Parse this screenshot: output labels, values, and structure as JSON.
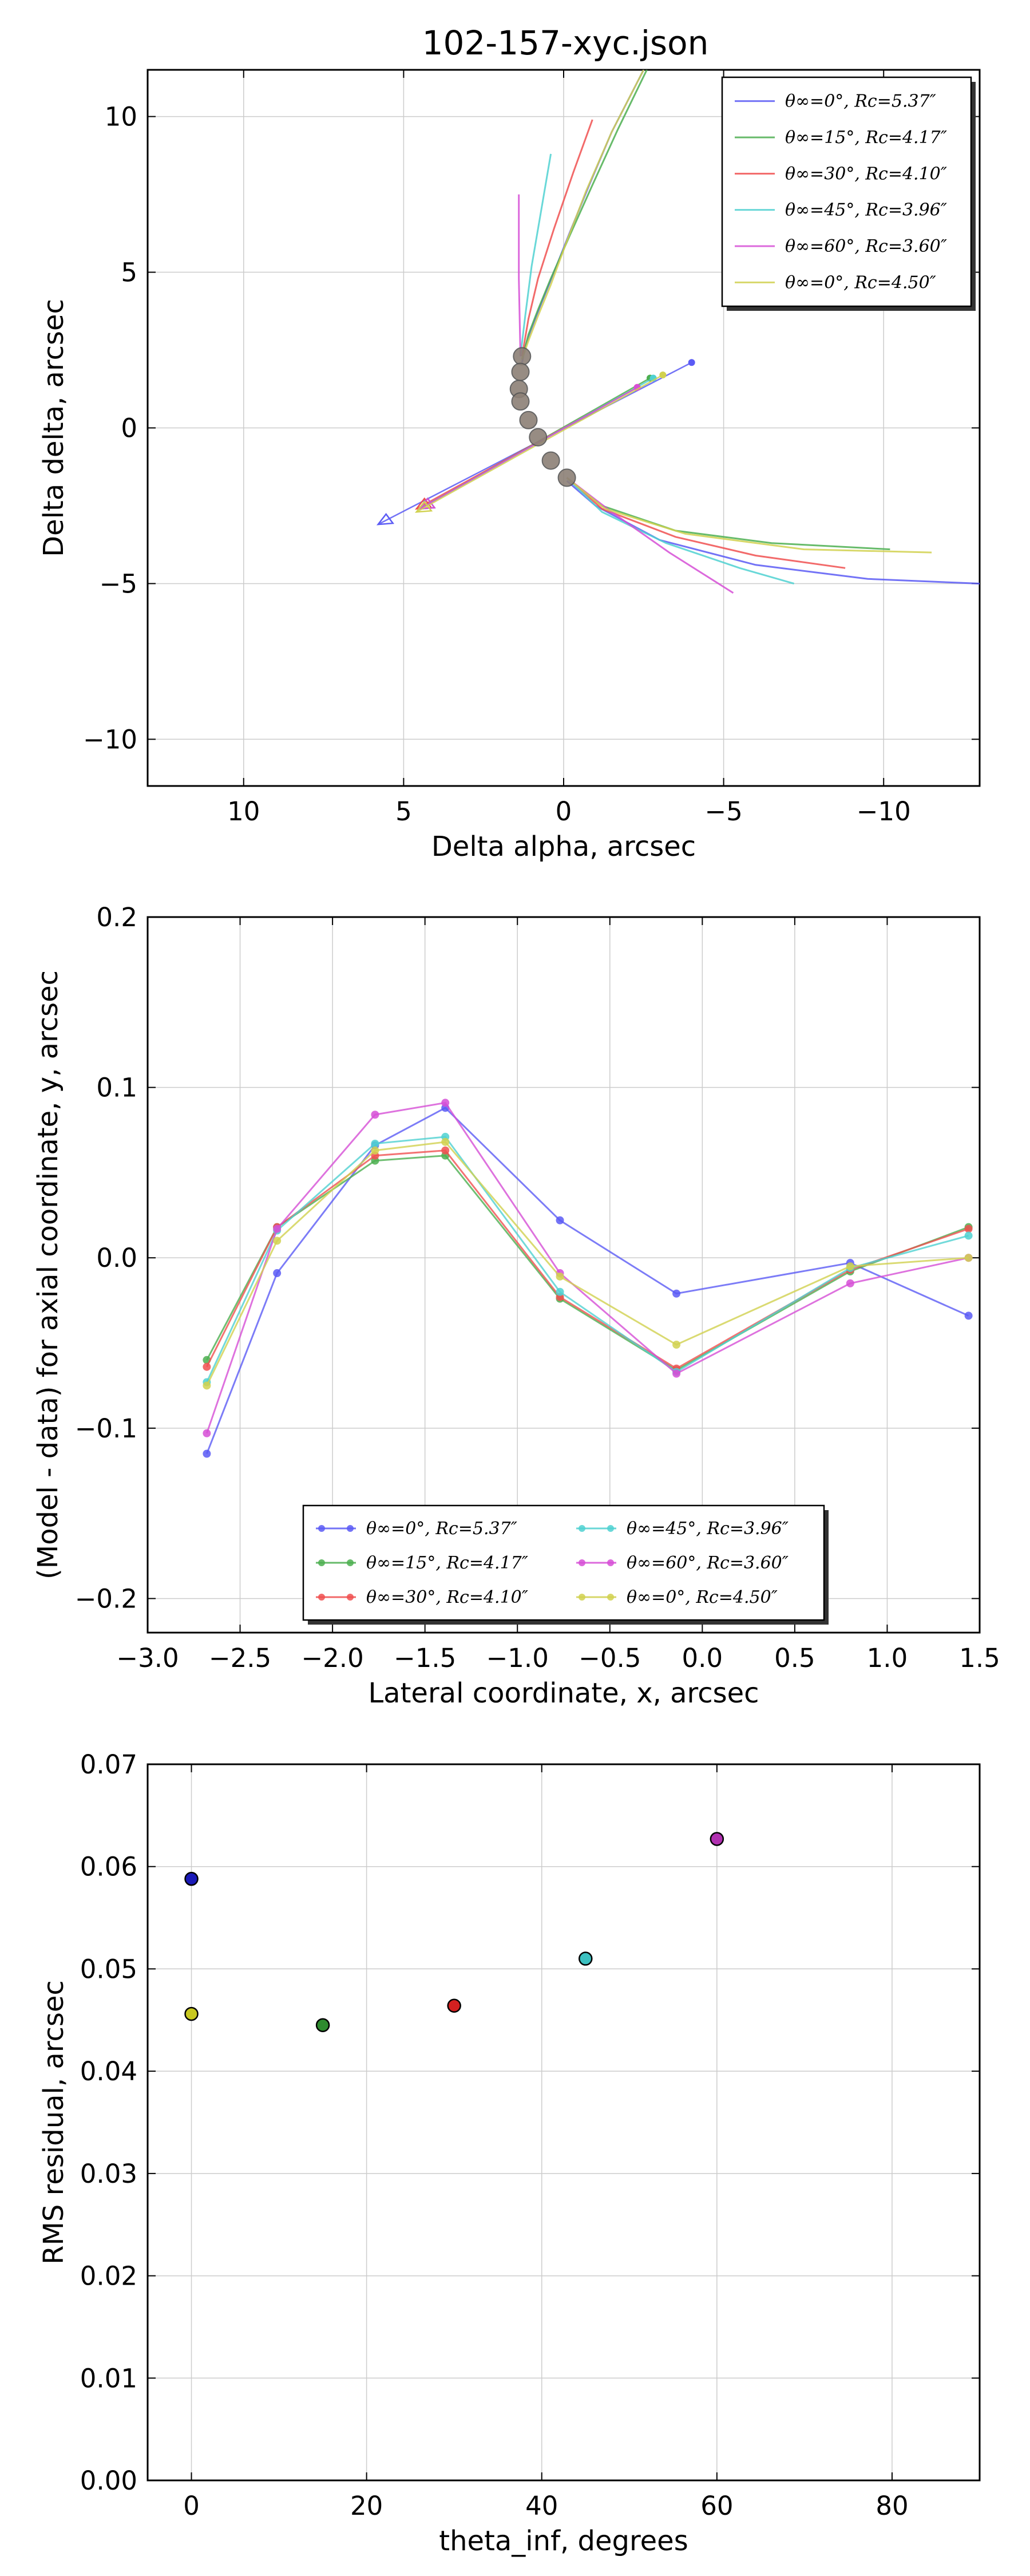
{
  "figure_title": "102-157-xyc.json",
  "chart_data": [
    {
      "type": "line",
      "title": "102-157-xyc.json",
      "xlabel": "Delta alpha, arcsec",
      "ylabel": "Delta delta, arcsec",
      "xlim": [
        13.0,
        -13.0
      ],
      "ylim": [
        -11.5,
        11.5
      ],
      "xticks": [
        10,
        5,
        0,
        -5,
        -10
      ],
      "xtick_labels": [
        "10",
        "5",
        "0",
        "−5",
        "−10"
      ],
      "yticks": [
        -10,
        -5,
        0,
        5,
        10
      ],
      "ytick_labels": [
        "−10",
        "−5",
        "0",
        "5",
        "10"
      ],
      "grid": true,
      "legend_position": "top-right",
      "data_points": {
        "name": "observed shell points",
        "color": "#8c8076",
        "x": [
          1.3,
          1.35,
          1.4,
          1.35,
          1.1,
          0.8,
          0.4,
          -0.1
        ],
        "y": [
          2.3,
          1.8,
          1.25,
          0.85,
          0.25,
          -0.3,
          -1.05,
          -1.6
        ]
      },
      "series": [
        {
          "name": "θ∞=0°, Rc=5.37″",
          "color": "#5b5bf5",
          "x": [
            -2.5,
            -1.5,
            -0.8,
            -0.2,
            0.3,
            0.7,
            1.0,
            1.2,
            1.3
          ],
          "y": [
            11.5,
            9.5,
            7.8,
            6.3,
            5.0,
            4.0,
            3.2,
            2.6,
            2.1
          ],
          "x2": [
            -0.1,
            -1.0,
            -3.0,
            -6.0,
            -9.5,
            -13.0
          ],
          "y2": [
            -1.7,
            -2.5,
            -3.6,
            -4.4,
            -4.85,
            -5.0
          ]
        },
        {
          "name": "θ∞=15°, Rc=4.17″",
          "color": "#4caf50",
          "x": [
            -2.6,
            -1.7,
            -0.9,
            -0.2,
            0.4,
            0.8,
            1.1,
            1.3
          ],
          "y": [
            11.5,
            9.6,
            7.8,
            6.2,
            4.8,
            3.8,
            3.0,
            2.2
          ],
          "x2": [
            -0.1,
            -1.2,
            -3.5,
            -6.5,
            -10.2
          ],
          "y2": [
            -1.6,
            -2.5,
            -3.3,
            -3.7,
            -3.9
          ]
        },
        {
          "name": "θ∞=30°, Rc=4.10″",
          "color": "#f05050",
          "x": [
            -0.9,
            -0.3,
            0.3,
            0.8,
            1.1,
            1.3
          ],
          "y": [
            9.9,
            8.2,
            6.4,
            4.8,
            3.5,
            2.3
          ],
          "x2": [
            -0.1,
            -1.2,
            -3.5,
            -6.0,
            -8.8
          ],
          "y2": [
            -1.6,
            -2.6,
            -3.5,
            -4.1,
            -4.5
          ]
        },
        {
          "name": "θ∞=45°, Rc=3.96″",
          "color": "#4fd1d1",
          "x": [
            0.4,
            0.7,
            1.0,
            1.2,
            1.35
          ],
          "y": [
            8.8,
            7.0,
            5.2,
            3.6,
            2.3
          ],
          "x2": [
            -0.1,
            -1.2,
            -3.2,
            -5.5,
            -7.2
          ],
          "y2": [
            -1.6,
            -2.7,
            -3.7,
            -4.5,
            -5.0
          ]
        },
        {
          "name": "θ∞=60°, Rc=3.60″",
          "color": "#d64fd6",
          "x": [
            1.4,
            1.4,
            1.35
          ],
          "y": [
            7.5,
            4.8,
            2.3
          ],
          "x2": [
            -0.1,
            -1.5,
            -3.3,
            -5.3
          ],
          "y2": [
            -1.6,
            -2.7,
            -4.0,
            -5.3
          ]
        },
        {
          "name": "θ∞=0°, Rc=4.50″",
          "color": "#d1d14f",
          "x": [
            -2.5,
            -1.5,
            -0.7,
            -0.1,
            0.4,
            0.8,
            1.1,
            1.3
          ],
          "y": [
            11.5,
            9.5,
            7.6,
            6.0,
            4.6,
            3.6,
            2.8,
            2.2
          ],
          "x2": [
            -0.1,
            -1.3,
            -3.8,
            -7.5,
            -11.5
          ],
          "y2": [
            -1.6,
            -2.6,
            -3.4,
            -3.9,
            -4.0
          ]
        }
      ],
      "axis_line": {
        "colors": [
          "#5b5bf5",
          "#4caf50",
          "#f05050",
          "#4fd1d1",
          "#d64fd6",
          "#d1d14f"
        ],
        "ends_x": [
          -4.0,
          -2.7,
          -2.3,
          -2.8,
          -2.3,
          -3.1
        ],
        "ends_y": [
          2.1,
          1.6,
          1.3,
          1.6,
          1.3,
          1.7
        ],
        "starts_x": [
          5.8,
          4.5,
          4.6,
          4.5,
          4.5,
          4.6
        ],
        "starts_y": [
          -3.1,
          -2.6,
          -2.6,
          -2.6,
          -2.6,
          -2.7
        ]
      }
    },
    {
      "type": "line",
      "title": "",
      "xlabel": "Lateral coordinate, x, arcsec",
      "ylabel": "(Model - data) for axial coordinate, y, arcsec",
      "xlim": [
        -3.0,
        1.5
      ],
      "ylim": [
        -0.22,
        0.2
      ],
      "xticks": [
        -3.0,
        -2.5,
        -2.0,
        -1.5,
        -1.0,
        -0.5,
        0.0,
        0.5,
        1.0,
        1.5
      ],
      "xtick_labels": [
        "−3.0",
        "−2.5",
        "−2.0",
        "−1.5",
        "−1.0",
        "−0.5",
        "0.0",
        "0.5",
        "1.0",
        "1.5"
      ],
      "yticks": [
        -0.2,
        -0.1,
        0.0,
        0.1,
        0.2
      ],
      "ytick_labels": [
        "−0.2",
        "−0.1",
        "0.0",
        "0.1",
        "0.2"
      ],
      "grid": true,
      "legend_position": "bottom-center",
      "x": [
        -2.68,
        -2.3,
        -1.77,
        -1.39,
        -0.77,
        -0.14,
        0.8,
        1.44
      ],
      "series": [
        {
          "name": "θ∞=0°, Rc=5.37″",
          "color": "#5b5bf5",
          "values": [
            -0.115,
            -0.009,
            0.066,
            0.088,
            0.022,
            -0.021,
            -0.003,
            -0.034
          ]
        },
        {
          "name": "θ∞=15°, Rc=4.17″",
          "color": "#4caf50",
          "values": [
            -0.06,
            0.018,
            0.057,
            0.06,
            -0.024,
            -0.066,
            -0.008,
            0.018
          ]
        },
        {
          "name": "θ∞=30°, Rc=4.10″",
          "color": "#f05050",
          "values": [
            -0.064,
            0.018,
            0.06,
            0.063,
            -0.023,
            -0.065,
            -0.007,
            0.017
          ]
        },
        {
          "name": "θ∞=45°, Rc=3.96″",
          "color": "#4fd1d1",
          "values": [
            -0.073,
            0.016,
            0.067,
            0.071,
            -0.02,
            -0.067,
            -0.006,
            0.013
          ]
        },
        {
          "name": "θ∞=60°, Rc=3.60″",
          "color": "#d64fd6",
          "values": [
            -0.103,
            0.017,
            0.084,
            0.091,
            -0.009,
            -0.068,
            -0.015,
            0.0
          ]
        },
        {
          "name": "θ∞=0°, Rc=4.50″",
          "color": "#d1d14f",
          "values": [
            -0.075,
            0.01,
            0.063,
            0.068,
            -0.011,
            -0.051,
            -0.005,
            0.0
          ]
        }
      ]
    },
    {
      "type": "scatter",
      "title": "",
      "xlabel": "theta_inf, degrees",
      "ylabel": "RMS residual, arcsec",
      "xlim": [
        -5,
        90
      ],
      "ylim": [
        0.0,
        0.07
      ],
      "xticks": [
        0,
        20,
        40,
        60,
        80
      ],
      "xtick_labels": [
        "0",
        "20",
        "40",
        "60",
        "80"
      ],
      "yticks": [
        0.0,
        0.01,
        0.02,
        0.03,
        0.04,
        0.05,
        0.06,
        0.07
      ],
      "ytick_labels": [
        "0.00",
        "0.01",
        "0.02",
        "0.03",
        "0.04",
        "0.05",
        "0.06",
        "0.07"
      ],
      "grid": true,
      "points": [
        {
          "x": 0,
          "y": 0.0588,
          "color": "#1a1ab8"
        },
        {
          "x": 15,
          "y": 0.0445,
          "color": "#2e8b2e"
        },
        {
          "x": 30,
          "y": 0.0464,
          "color": "#d42020"
        },
        {
          "x": 45,
          "y": 0.051,
          "color": "#3cc0c0"
        },
        {
          "x": 60,
          "y": 0.0627,
          "color": "#b030b0"
        },
        {
          "x": 0,
          "y": 0.0456,
          "color": "#c8c820"
        }
      ]
    }
  ]
}
